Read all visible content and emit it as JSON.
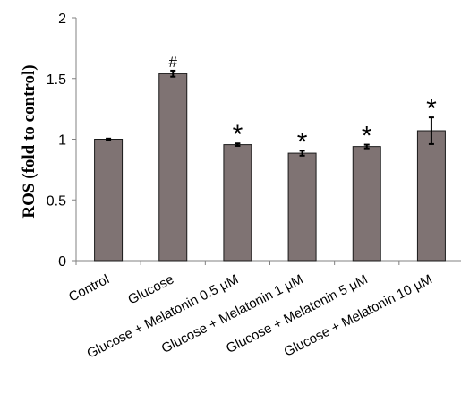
{
  "chart_data": {
    "type": "bar",
    "title": "",
    "xlabel": "",
    "ylabel": "ROS (fold to control)",
    "ylim": [
      0,
      2
    ],
    "yticks": [
      0,
      0.5,
      1,
      1.5,
      2
    ],
    "ytick_labels": [
      "0",
      "0.5",
      "1",
      "1.5",
      "2"
    ],
    "grid": false,
    "legend": "none",
    "categories": [
      "Control",
      "Glucose",
      "Glucose + Melatonin 0.5 μM",
      "Glucose + Melatonin 1 μM",
      "Glucose + Melatonin 5 μM",
      "Glucose + Melatonin 10 μM"
    ],
    "values": [
      1.0,
      1.54,
      0.955,
      0.885,
      0.94,
      1.07
    ],
    "error": [
      0.005,
      0.025,
      0.01,
      0.02,
      0.015,
      0.11
    ],
    "annotations": [
      "",
      "#",
      "*",
      "*",
      "*",
      "*"
    ],
    "bar_color": "#7f7373",
    "edge_color": "#1a1a1a"
  }
}
